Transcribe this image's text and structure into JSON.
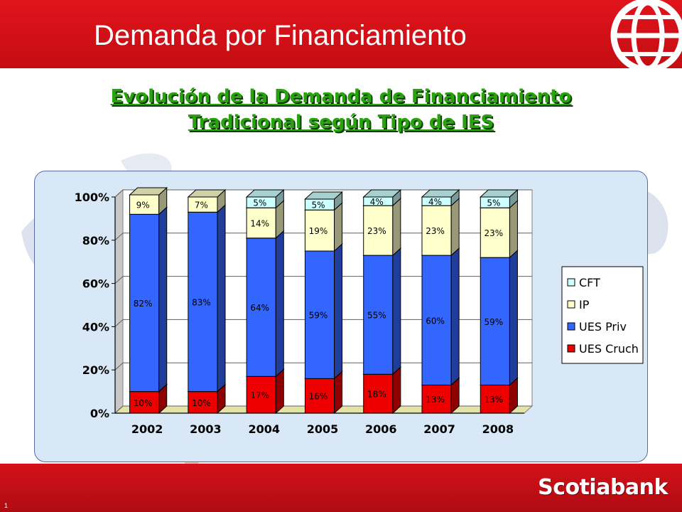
{
  "header": {
    "title": "Demanda por Financiamiento"
  },
  "subtitle": {
    "line1": "Evolución de la Demanda de Financiamiento",
    "line2": "Tradicional según Tipo de IES"
  },
  "footer": {
    "brand": "Scotiabank",
    "page_number": "1"
  },
  "colors": {
    "header_red": "#d7141b",
    "subtitle_green": "#2aa10f",
    "ues_cruch": "#ee0000",
    "ues_priv": "#3366ff",
    "ip": "#ffffcc",
    "cft": "#ccffff"
  },
  "icons": {
    "header_logo": "globe-icon"
  },
  "chart_data": {
    "type": "bar",
    "stacked": true,
    "style": "3d",
    "categories": [
      "2002",
      "2003",
      "2004",
      "2005",
      "2006",
      "2007",
      "2008"
    ],
    "y_tick_labels": [
      "0%",
      "20%",
      "40%",
      "60%",
      "80%",
      "100%"
    ],
    "ylim": [
      0,
      100
    ],
    "grid": true,
    "legend_position": "right",
    "series": [
      {
        "name": "UES Cruch",
        "color": "#ee0000",
        "values": [
          10,
          10,
          17,
          16,
          18,
          13,
          13
        ],
        "labels": [
          "10%",
          "10%",
          "17%",
          "16%",
          "18%",
          "13%",
          "13%"
        ]
      },
      {
        "name": "UES Priv",
        "color": "#3366ff",
        "values": [
          82,
          83,
          64,
          59,
          55,
          60,
          59
        ],
        "labels": [
          "82%",
          "83%",
          "64%",
          "59%",
          "55%",
          "60%",
          "59%"
        ]
      },
      {
        "name": "IP",
        "color": "#ffffcc",
        "values": [
          9,
          7,
          14,
          19,
          23,
          23,
          23
        ],
        "labels": [
          "9%",
          "7%",
          "14%",
          "19%",
          "23%",
          "23%",
          "23%"
        ]
      },
      {
        "name": "CFT",
        "color": "#ccffff",
        "values": [
          0,
          0,
          5,
          5,
          4,
          4,
          5
        ],
        "labels": [
          "",
          "",
          "5%",
          "5%",
          "4%",
          "4%",
          "5%"
        ]
      }
    ],
    "legend_order": [
      "CFT",
      "IP",
      "UES Priv",
      "UES Cruch"
    ]
  }
}
